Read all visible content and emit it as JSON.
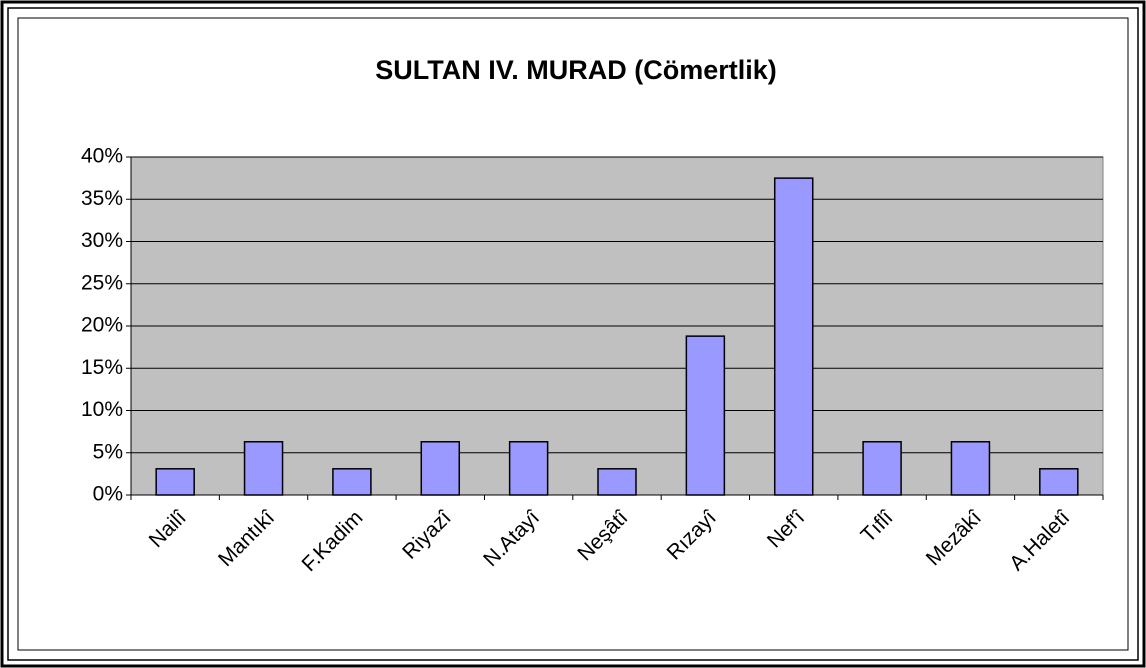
{
  "chart_data": {
    "type": "bar",
    "title": "SULTAN IV. MURAD (Cömertlik)",
    "categories": [
      "Nailî",
      "Mantıkî",
      "F.Kadim",
      "Riyazî",
      "N.Atayî",
      "Neşâtî",
      "Rızayî",
      "Nef'î",
      "Tıflî",
      "Mezâkî",
      "A.Haletî"
    ],
    "values": [
      3.1,
      6.3,
      3.1,
      6.3,
      6.3,
      3.1,
      18.8,
      37.5,
      6.3,
      6.3,
      3.1
    ],
    "color": "#9999ff",
    "plot_background": "#c0c0c0",
    "ylim": [
      0,
      40
    ],
    "yticks": [
      {
        "value": 0,
        "label": "0%"
      },
      {
        "value": 5,
        "label": "5%"
      },
      {
        "value": 10,
        "label": "10%"
      },
      {
        "value": 15,
        "label": "15%"
      },
      {
        "value": 20,
        "label": "20%"
      },
      {
        "value": 25,
        "label": "25%"
      },
      {
        "value": 30,
        "label": "30%"
      },
      {
        "value": 35,
        "label": "35%"
      },
      {
        "value": 40,
        "label": "40%"
      }
    ],
    "grid": true
  }
}
